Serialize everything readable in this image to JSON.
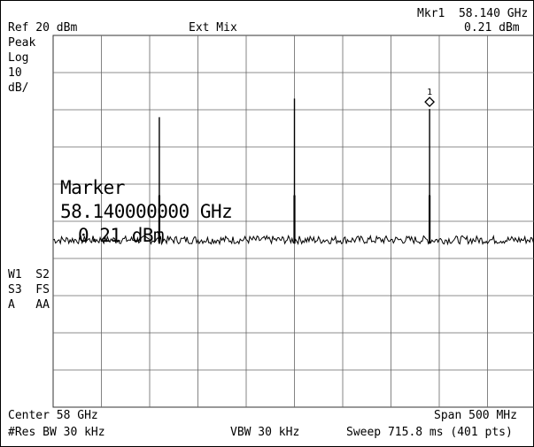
{
  "header": {
    "marker_readout_freq": "Mkr1  58.140 GHz",
    "marker_readout_amp": "0.21 dBm",
    "ref_level": "Ref 20 dBm",
    "mixer_mode": "Ext Mix"
  },
  "left_panel": {
    "detector": "Peak",
    "scale_type": "Log",
    "scale_value": "10",
    "scale_unit": "dB/",
    "trace_modes": [
      "W1  S2",
      "S3  FS",
      "A   AA"
    ]
  },
  "marker_box": {
    "title": "Marker",
    "frequency": "58.140000000 GHz",
    "amplitude": "0.21 dBm"
  },
  "marker_symbol_label": "1",
  "footer": {
    "center": "Center 58 GHz",
    "span": "Span 500 MHz",
    "res_bw": "#Res BW 30 kHz",
    "vbw": "VBW 30 kHz",
    "sweep": "Sweep 715.8 ms (401 pts)"
  },
  "chart_data": {
    "type": "line",
    "x_unit": "GHz",
    "y_unit": "dBm",
    "xlim": [
      57.75,
      58.25
    ],
    "ylim": [
      -80,
      20
    ],
    "grid": true,
    "noise_floor_dbm": -35,
    "peaks": [
      {
        "x": 57.86,
        "y": -2
      },
      {
        "x": 58.0,
        "y": 3
      },
      {
        "x": 58.14,
        "y": 0.21
      }
    ],
    "marker": {
      "name": "1",
      "x": 58.14,
      "y": 0.21
    }
  }
}
